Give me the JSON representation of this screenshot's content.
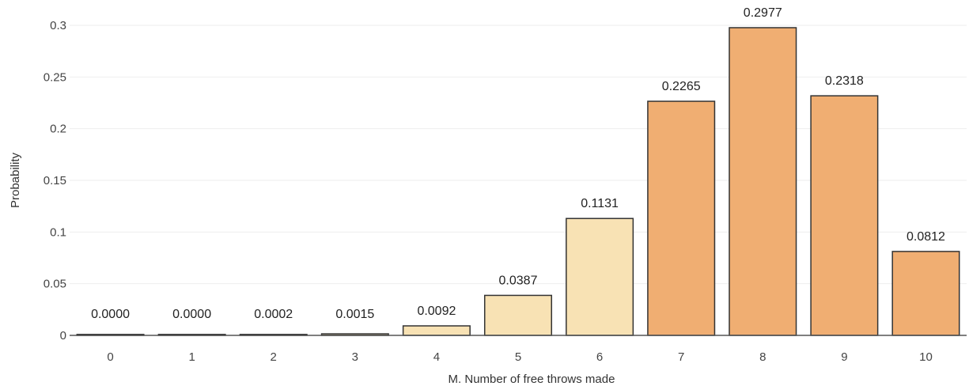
{
  "chart_data": {
    "type": "bar",
    "title": "",
    "xlabel": "M. Number of free throws made",
    "ylabel": "Probability",
    "categories": [
      "0",
      "1",
      "2",
      "3",
      "4",
      "5",
      "6",
      "7",
      "8",
      "9",
      "10"
    ],
    "values": [
      0.0,
      0.0,
      0.0002,
      0.0015,
      0.0092,
      0.0387,
      0.1131,
      0.2265,
      0.2977,
      0.2318,
      0.0812
    ],
    "data_labels": [
      "0.0000",
      "0.0000",
      "0.0002",
      "0.0015",
      "0.0092",
      "0.0387",
      "0.1131",
      "0.2265",
      "0.2977",
      "0.2318",
      "0.0812"
    ],
    "y_ticks": [
      "0",
      "0.05",
      "0.1",
      "0.15",
      "0.2",
      "0.25",
      "0.3"
    ],
    "ylim": [
      0,
      0.3
    ],
    "grid": true,
    "legend": "none",
    "bar_colors": [
      "#d9d9d9",
      "#d9d9d9",
      "#d9d9d9",
      "#e8d4a8",
      "#f8e2b4",
      "#f8e2b4",
      "#f8e2b4",
      "#f0ae72",
      "#f0ae72",
      "#f0ae72",
      "#f0ae72"
    ]
  }
}
